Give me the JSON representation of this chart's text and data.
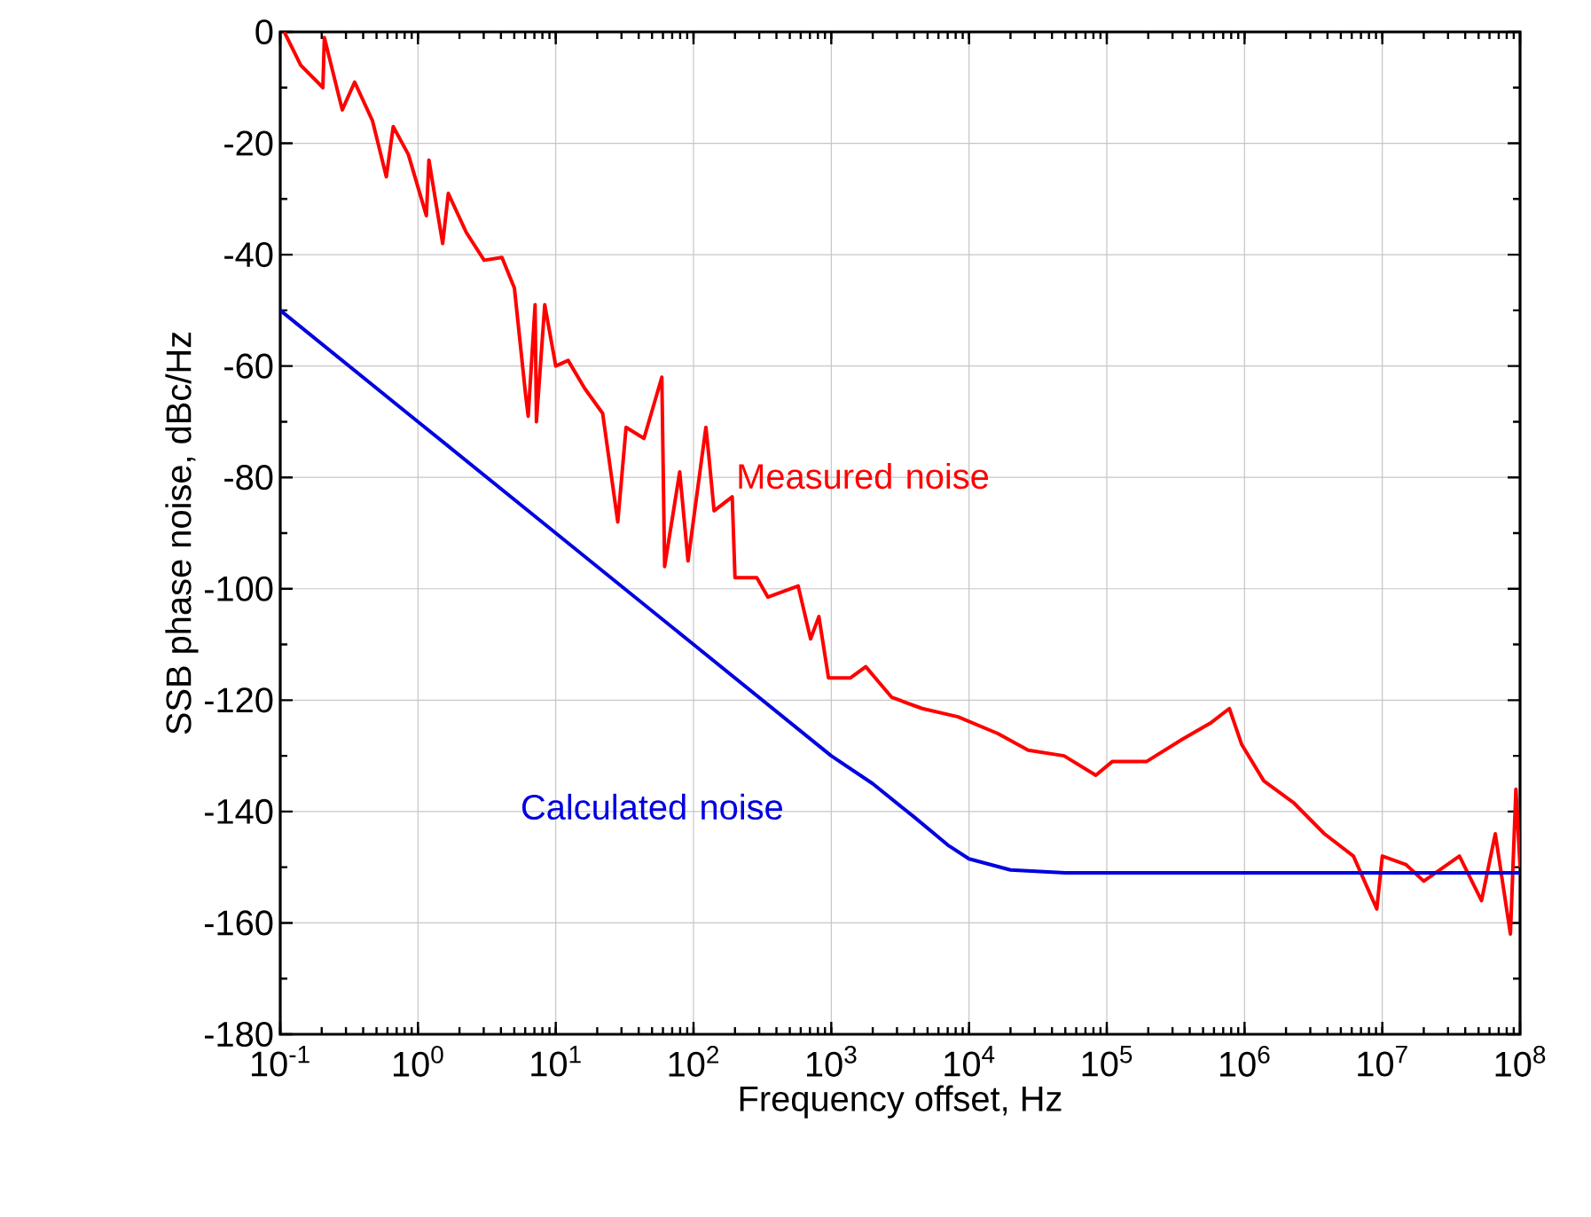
{
  "chart_data": {
    "type": "line",
    "xlabel": "Frequency offset, Hz",
    "ylabel": "SSB phase noise, dBc/Hz",
    "log": "x",
    "grid": true,
    "legend": false,
    "marker": "none",
    "line_style": "solid",
    "xlim": [
      0.1,
      100000000
    ],
    "ylim": [
      -180,
      0
    ],
    "xticks": [
      {
        "value": 0.1,
        "label": "10$^{-1}$"
      },
      {
        "value": 1,
        "label": "10$^{0}$"
      },
      {
        "value": 10,
        "label": "10$^{1}$"
      },
      {
        "value": 100,
        "label": "10$^{2}$"
      },
      {
        "value": 1000,
        "label": "10$^{3}$"
      },
      {
        "value": 10000,
        "label": "10$^{4}$"
      },
      {
        "value": 100000,
        "label": "10$^{5}$"
      },
      {
        "value": 1000000,
        "label": "10$^{6}$"
      },
      {
        "value": 10000000,
        "label": "10$^{7}$"
      },
      {
        "value": 100000000,
        "label": "10$^{8}$"
      }
    ],
    "yticks": [
      -180,
      -160,
      -140,
      -120,
      -100,
      -80,
      -60,
      -40,
      -20,
      0
    ],
    "series": [
      {
        "name": "Measured noise",
        "color": "#ff0000",
        "x": [
          0.107,
          0.141,
          0.204,
          0.209,
          0.282,
          0.347,
          0.468,
          0.589,
          0.661,
          0.851,
          1.15,
          1.2,
          1.51,
          1.66,
          2.24,
          3.02,
          4.07,
          5.01,
          6.03,
          6.31,
          7.08,
          7.24,
          8.32,
          10,
          12.3,
          16.2,
          21.9,
          28.2,
          32.4,
          43.7,
          58.9,
          61.7,
          79.4,
          91.2,
          123,
          129,
          141,
          191,
          200,
          288,
          347,
          575,
          708,
          813,
          955,
          1380,
          1780,
          2750,
          4570,
          8320,
          16200,
          26900,
          49000,
          83200,
          110000,
          195000,
          355000,
          575000,
          776000,
          955000,
          1380000,
          2290000,
          3800000,
          6170000,
          9120000,
          10000000,
          14800000,
          20000000,
          36300000,
          52500000,
          66100000,
          85100000,
          93300000,
          100000000
        ],
        "values": [
          0,
          -6,
          -10,
          -1,
          -14,
          -9,
          -16,
          -26,
          -17,
          -22,
          -33,
          -23,
          -38,
          -29,
          -36,
          -41,
          -40.5,
          -46,
          -65,
          -69,
          -49,
          -70,
          -49,
          -60,
          -59,
          -64,
          -68.5,
          -88,
          -71,
          -73,
          -62,
          -96,
          -79,
          -95,
          -71,
          -76,
          -86,
          -83.5,
          -98,
          -98,
          -101.5,
          -99.5,
          -109,
          -105,
          -116,
          -116,
          -114,
          -119.5,
          -121.5,
          -123,
          -126,
          -129,
          -130,
          -133.5,
          -131,
          -131,
          -127,
          -124,
          -121.5,
          -128,
          -134.5,
          -138.5,
          -144,
          -148,
          -157.5,
          -148,
          -149.5,
          -152.5,
          -148,
          -156,
          -144,
          -162,
          -136,
          -150
        ]
      },
      {
        "name": "Calculated noise",
        "color": "#0000e0",
        "x": [
          0.1,
          1,
          10,
          100,
          1000,
          2000,
          4000,
          7000,
          10000,
          20000,
          50000,
          100000000
        ],
        "values": [
          -50,
          -70,
          -90,
          -110,
          -130,
          -135,
          -141,
          -146,
          -148.5,
          -150.5,
          -151,
          -151
        ]
      }
    ]
  }
}
